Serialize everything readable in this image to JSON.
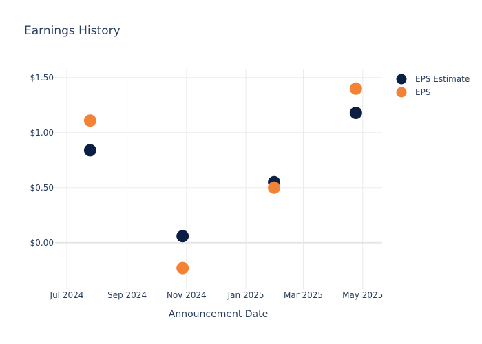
{
  "chart_data": {
    "type": "scatter",
    "title": "Earnings History",
    "xlabel": "Announcement Date",
    "ylabel": "",
    "x_ticks": [
      {
        "date": "2024-07-01",
        "label": "Jul 2024"
      },
      {
        "date": "2024-09-01",
        "label": "Sep 2024"
      },
      {
        "date": "2024-11-01",
        "label": "Nov 2024"
      },
      {
        "date": "2025-01-01",
        "label": "Jan 2025"
      },
      {
        "date": "2025-03-01",
        "label": "Mar 2025"
      },
      {
        "date": "2025-05-01",
        "label": "May 2025"
      }
    ],
    "y_ticks": [
      {
        "value": 0,
        "label": "$0.00"
      },
      {
        "value": 0.5,
        "label": "$0.50"
      },
      {
        "value": 1.0,
        "label": "$1.00"
      },
      {
        "value": 1.5,
        "label": "$1.50"
      }
    ],
    "xlim": [
      "2024-06-19",
      "2025-05-21"
    ],
    "ylim": [
      -0.42,
      1.58
    ],
    "grid": true,
    "legend_position": "top-right",
    "series": [
      {
        "name": "EPS Estimate",
        "color": "#0b1f45",
        "points": [
          {
            "x": "2024-07-25",
            "y": 0.84
          },
          {
            "x": "2024-10-28",
            "y": 0.06
          },
          {
            "x": "2025-01-30",
            "y": 0.55
          },
          {
            "x": "2025-04-24",
            "y": 1.18
          }
        ]
      },
      {
        "name": "EPS",
        "color": "#f48235",
        "points": [
          {
            "x": "2024-07-25",
            "y": 1.11
          },
          {
            "x": "2024-10-28",
            "y": -0.23
          },
          {
            "x": "2025-01-30",
            "y": 0.5
          },
          {
            "x": "2025-04-24",
            "y": 1.4
          }
        ]
      }
    ]
  }
}
